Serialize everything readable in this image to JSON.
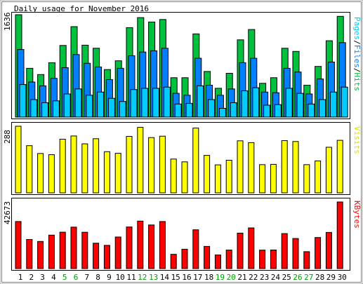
{
  "chart_data": [
    {
      "type": "bar",
      "panel": "hits",
      "title": "Daily usage for November 2016",
      "ymax_label": "1636",
      "ylim": [
        0,
        1636
      ],
      "right_label": "Pages/Files/Hits",
      "right_label_parts": [
        "Pages",
        "/",
        "Files",
        "/",
        "Hits"
      ],
      "colors": {
        "pages": "#00CCFF",
        "files": "#0080FF",
        "hits": "#00C040",
        "sep": "#000000"
      },
      "categories": [
        "1",
        "2",
        "3",
        "4",
        "5",
        "6",
        "7",
        "8",
        "9",
        "10",
        "11",
        "12",
        "13",
        "14",
        "15",
        "16",
        "17",
        "18",
        "19",
        "20",
        "21",
        "22",
        "23",
        "24",
        "25",
        "26",
        "27",
        "28",
        "29",
        "30"
      ],
      "weekend": [
        "5",
        "6",
        "12",
        "13",
        "19",
        "20",
        "26",
        "27"
      ],
      "series": [
        {
          "name": "Hits",
          "values": [
            1636,
            780,
            680,
            870,
            1145,
            1445,
            1150,
            1100,
            760,
            900,
            1430,
            1590,
            1520,
            1560,
            630,
            630,
            1330,
            730,
            460,
            700,
            1235,
            1400,
            540,
            630,
            1100,
            1050,
            510,
            810,
            1220,
            1610
          ]
        },
        {
          "name": "Files",
          "values": [
            1080,
            560,
            500,
            620,
            790,
            1000,
            860,
            800,
            600,
            780,
            980,
            1040,
            1060,
            1100,
            380,
            350,
            940,
            510,
            350,
            450,
            870,
            940,
            400,
            390,
            780,
            720,
            370,
            610,
            880,
            1190
          ]
        },
        {
          "name": "Pages",
          "values": [
            520,
            280,
            230,
            260,
            370,
            450,
            350,
            400,
            300,
            250,
            440,
            460,
            460,
            480,
            210,
            220,
            500,
            280,
            140,
            230,
            420,
            470,
            190,
            200,
            460,
            380,
            210,
            280,
            400,
            480
          ]
        }
      ]
    },
    {
      "type": "bar",
      "panel": "visits",
      "ymax_label": "288",
      "ylim": [
        0,
        288
      ],
      "right_label": "Visits",
      "colors": {
        "visits": "#FFFF00"
      },
      "categories": [
        "1",
        "2",
        "3",
        "4",
        "5",
        "6",
        "7",
        "8",
        "9",
        "10",
        "11",
        "12",
        "13",
        "14",
        "15",
        "16",
        "17",
        "18",
        "19",
        "20",
        "21",
        "22",
        "23",
        "24",
        "25",
        "26",
        "27",
        "28",
        "29",
        "30"
      ],
      "series": [
        {
          "name": "Visits",
          "values": [
            288,
            204,
            170,
            165,
            232,
            246,
            212,
            234,
            178,
            171,
            244,
            283,
            239,
            245,
            146,
            134,
            280,
            162,
            121,
            141,
            225,
            217,
            122,
            123,
            226,
            222,
            122,
            138,
            197,
            227
          ]
        }
      ]
    },
    {
      "type": "bar",
      "panel": "kbytes",
      "ymax_label": "42673",
      "ylim": [
        0,
        42673
      ],
      "right_label": "KBytes",
      "colors": {
        "kbytes": "#FF0000"
      },
      "categories": [
        "1",
        "2",
        "3",
        "4",
        "5",
        "6",
        "7",
        "8",
        "9",
        "10",
        "11",
        "12",
        "13",
        "14",
        "15",
        "16",
        "17",
        "18",
        "19",
        "20",
        "21",
        "22",
        "23",
        "24",
        "25",
        "26",
        "27",
        "28",
        "29",
        "30"
      ],
      "series": [
        {
          "name": "KBytes",
          "values": [
            30130,
            18630,
            17370,
            21430,
            23330,
            26530,
            23250,
            16270,
            14890,
            20230,
            26630,
            30430,
            27930,
            30130,
            9130,
            12420,
            24860,
            14200,
            8730,
            11880,
            22730,
            26050,
            11820,
            11900,
            22430,
            19290,
            10830,
            19890,
            23180,
            42673
          ]
        }
      ]
    }
  ]
}
